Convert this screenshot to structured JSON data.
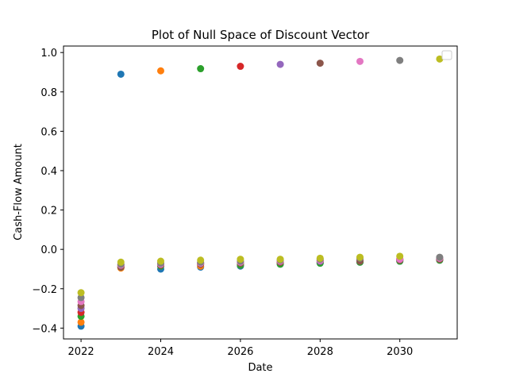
{
  "chart_data": {
    "type": "scatter",
    "title": "Plot of Null Space of Discount Vector",
    "xlabel": "Date",
    "ylabel": "Cash-Flow Amount",
    "xlim": [
      2021.56,
      2031.44
    ],
    "ylim": [
      -0.455,
      1.033
    ],
    "xticks": [
      2022,
      2024,
      2026,
      2028,
      2030
    ],
    "yticks": [
      -0.4,
      -0.2,
      0.0,
      0.2,
      0.4,
      0.6,
      0.8,
      1.0
    ],
    "ytick_labels": [
      "−0.4",
      "−0.2",
      "0.0",
      "0.2",
      "0.4",
      "0.6",
      "0.8",
      "1.0"
    ],
    "grid": false,
    "legend": "top-right (empty box)",
    "x": [
      2022,
      2023,
      2024,
      2025,
      2026,
      2027,
      2028,
      2029,
      2030,
      2031
    ],
    "series": [
      {
        "color": "#1f77b4",
        "values": [
          -0.39,
          0.89,
          -0.1,
          -0.09,
          -0.085,
          -0.075,
          -0.07,
          -0.065,
          -0.06,
          -0.055
        ]
      },
      {
        "color": "#ff7f0e",
        "values": [
          -0.37,
          -0.095,
          0.907,
          -0.085,
          -0.08,
          -0.07,
          -0.065,
          -0.06,
          -0.055,
          -0.05
        ]
      },
      {
        "color": "#2ca02c",
        "values": [
          -0.34,
          -0.09,
          -0.085,
          0.918,
          -0.08,
          -0.075,
          -0.07,
          -0.065,
          -0.06,
          -0.055
        ]
      },
      {
        "color": "#d62728",
        "values": [
          -0.32,
          -0.085,
          -0.08,
          -0.075,
          0.93,
          -0.065,
          -0.06,
          -0.055,
          -0.05,
          -0.05
        ]
      },
      {
        "color": "#9467bd",
        "values": [
          -0.3,
          -0.08,
          -0.075,
          -0.07,
          -0.065,
          0.94,
          -0.06,
          -0.055,
          -0.05,
          -0.045
        ]
      },
      {
        "color": "#8c564b",
        "values": [
          -0.285,
          -0.09,
          -0.08,
          -0.075,
          -0.07,
          -0.065,
          0.946,
          -0.06,
          -0.055,
          -0.05
        ]
      },
      {
        "color": "#e377c2",
        "values": [
          -0.265,
          -0.08,
          -0.075,
          -0.07,
          -0.065,
          -0.06,
          -0.055,
          0.955,
          -0.05,
          -0.045
        ]
      },
      {
        "color": "#7f7f7f",
        "values": [
          -0.245,
          -0.075,
          -0.07,
          -0.065,
          -0.06,
          -0.055,
          -0.05,
          -0.045,
          0.96,
          -0.04
        ]
      },
      {
        "color": "#bcbd22",
        "values": [
          -0.22,
          -0.065,
          -0.06,
          -0.055,
          -0.05,
          -0.05,
          -0.045,
          -0.04,
          -0.035,
          0.967
        ]
      }
    ]
  }
}
